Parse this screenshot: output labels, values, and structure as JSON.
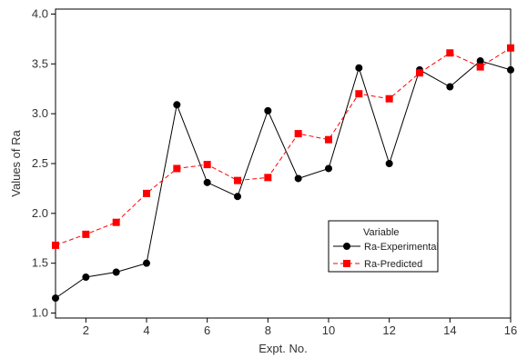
{
  "chart_data": {
    "type": "line",
    "title": "",
    "xlabel": "Expt. No.",
    "ylabel": "Values of Ra",
    "xlim": [
      1,
      16
    ],
    "ylim": [
      0.95,
      4.05
    ],
    "xticks": [
      2,
      4,
      6,
      8,
      10,
      12,
      14,
      16
    ],
    "yticks": [
      1.0,
      1.5,
      2.0,
      2.5,
      3.0,
      3.5,
      4.0
    ],
    "grid": false,
    "legend": {
      "title": "Variable",
      "placement": "lower-right"
    },
    "x": [
      1,
      2,
      3,
      4,
      5,
      6,
      7,
      8,
      9,
      10,
      11,
      12,
      13,
      14,
      15,
      16
    ],
    "series": [
      {
        "name": "Ra-Experimental",
        "color": "#000000",
        "line_style": "solid",
        "marker": "circle",
        "values": [
          1.15,
          1.36,
          1.41,
          1.5,
          3.09,
          2.31,
          2.17,
          3.03,
          2.35,
          2.45,
          3.46,
          2.5,
          3.44,
          3.27,
          3.53,
          3.44
        ]
      },
      {
        "name": "Ra-Predicted",
        "color": "#ff0000",
        "line_style": "dashed",
        "marker": "square",
        "values": [
          1.68,
          1.79,
          1.91,
          2.2,
          2.45,
          2.49,
          2.33,
          2.36,
          2.8,
          2.74,
          3.2,
          3.15,
          3.41,
          3.61,
          3.47,
          3.66
        ]
      }
    ]
  }
}
